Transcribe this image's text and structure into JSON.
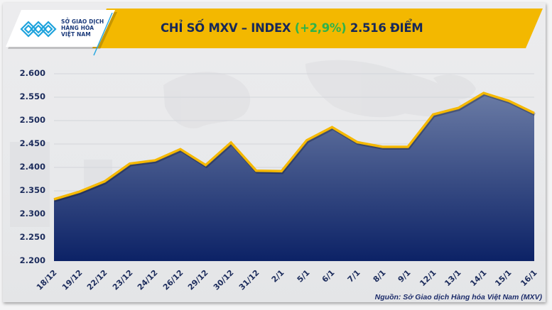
{
  "logo": {
    "lines": [
      "SỞ GIAO DỊCH",
      "HÀNG HÓA",
      "VIỆT NAM"
    ],
    "icon": "mxv-logo-icon"
  },
  "header": {
    "title_prefix": "CHỈ SỐ MXV – INDEX ",
    "title_change": "(+2,9%)",
    "title_suffix": " 2.516 ĐIỂM"
  },
  "colors": {
    "banner": "#F3B800",
    "title": "#16285A",
    "change_positive": "#2EB34B",
    "line": "#F5B800",
    "area_top": "#6A7BA5",
    "area_bottom": "#0C2266",
    "axis_text": "#1C2C5C"
  },
  "source": "Nguồn: Sở Giao dịch Hàng hóa Việt Nam (MXV)",
  "chart_data": {
    "type": "area",
    "title": "CHỈ SỐ MXV – INDEX (+2,9%) 2.516 ĐIỂM",
    "xlabel": "",
    "ylabel": "",
    "categories": [
      "18/12",
      "19/12",
      "22/12",
      "23/12",
      "24/12",
      "26/12",
      "29/12",
      "30/12",
      "31/12",
      "2/1",
      "5/1",
      "6/1",
      "7/1",
      "8/1",
      "9/1",
      "12/1",
      "13/1",
      "14/1",
      "15/1",
      "16/1"
    ],
    "series": [
      {
        "name": "MXV-Index",
        "values": [
          2332,
          2348,
          2370,
          2408,
          2415,
          2439,
          2405,
          2453,
          2393,
          2392,
          2458,
          2486,
          2454,
          2444,
          2444,
          2513,
          2527,
          2559,
          2542,
          2516
        ]
      }
    ],
    "yticks": [
      "2.200",
      "2.250",
      "2.300",
      "2.350",
      "2.400",
      "2.450",
      "2.500",
      "2.550",
      "2.600"
    ],
    "ylim": [
      2200,
      2600
    ],
    "grid": true,
    "legend": "none"
  }
}
